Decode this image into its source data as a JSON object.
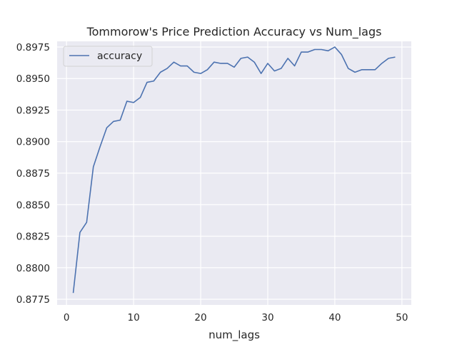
{
  "chart_data": {
    "type": "line",
    "title": "Tommorow's Price Prediction Accuracy vs Num_lags",
    "xlabel": "num_lags",
    "ylabel": "",
    "xlim": [
      -1.4,
      51.4
    ],
    "ylim": [
      0.87705,
      0.89795
    ],
    "xticks": [
      0,
      10,
      20,
      30,
      40,
      50
    ],
    "yticks": [
      0.8775,
      0.88,
      0.8825,
      0.885,
      0.8875,
      0.89,
      0.8925,
      0.895,
      0.8975
    ],
    "ytick_labels": [
      "0.8775",
      "0.8800",
      "0.8825",
      "0.8850",
      "0.8875",
      "0.8900",
      "0.8925",
      "0.8950",
      "0.8975"
    ],
    "grid": true,
    "legend_position": "top-left",
    "colors": {
      "line": "#4c72b0",
      "background": "#eaeaf2",
      "grid": "#ffffff"
    },
    "series": [
      {
        "name": "accuracy",
        "x": [
          1,
          2,
          3,
          4,
          5,
          6,
          7,
          8,
          9,
          10,
          11,
          12,
          13,
          14,
          15,
          16,
          17,
          18,
          19,
          20,
          21,
          22,
          23,
          24,
          25,
          26,
          27,
          28,
          29,
          30,
          31,
          32,
          33,
          34,
          35,
          36,
          37,
          38,
          39,
          40,
          41,
          42,
          43,
          44,
          45,
          46,
          47,
          48,
          49
        ],
        "y": [
          0.878,
          0.8828,
          0.8836,
          0.888,
          0.8896,
          0.8911,
          0.8916,
          0.8917,
          0.8932,
          0.8931,
          0.8935,
          0.8947,
          0.8948,
          0.8955,
          0.8958,
          0.8963,
          0.896,
          0.896,
          0.8955,
          0.8954,
          0.8957,
          0.8963,
          0.8962,
          0.8962,
          0.8959,
          0.8966,
          0.8967,
          0.8963,
          0.8954,
          0.8962,
          0.8956,
          0.8958,
          0.8966,
          0.896,
          0.8971,
          0.8971,
          0.8973,
          0.8973,
          0.8972,
          0.8975,
          0.8969,
          0.8958,
          0.8955,
          0.8957,
          0.8957,
          0.8957,
          0.8962,
          0.8966,
          0.8967
        ]
      }
    ]
  }
}
